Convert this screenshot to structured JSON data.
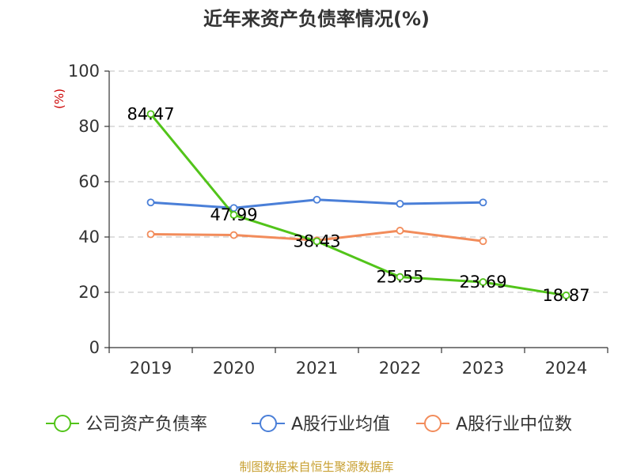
{
  "chart_data": {
    "type": "line",
    "title": "近年来资产负债率情况(%)",
    "ylabel": "(%)",
    "categories": [
      "2019",
      "2020",
      "2021",
      "2022",
      "2023",
      "2024"
    ],
    "ylim": [
      0,
      100
    ],
    "yticks": [
      "0",
      "20",
      "40",
      "60",
      "80",
      "100"
    ],
    "grid": "horizontal dashed",
    "legend_position": "bottom",
    "series": [
      {
        "name": "公司资产负债率",
        "color": "#52c41a",
        "values": [
          84.47,
          47.99,
          38.43,
          25.55,
          23.69,
          18.87
        ],
        "labels": [
          "84.47",
          "47.99",
          "38.43",
          "25.55",
          "23.69",
          "18.87"
        ]
      },
      {
        "name": "A股行业均值",
        "color": "#4a7fd8",
        "values": [
          52.5,
          50.5,
          53.5,
          52.0,
          52.5,
          null
        ]
      },
      {
        "name": "A股行业中位数",
        "color": "#f28c5b",
        "values": [
          41.0,
          40.7,
          38.8,
          42.3,
          38.5,
          null
        ]
      }
    ]
  },
  "source": {
    "text": "制图数据来自恒生聚源数据库",
    "color": "#c8a032"
  },
  "ylabel_color": "#cc0000"
}
